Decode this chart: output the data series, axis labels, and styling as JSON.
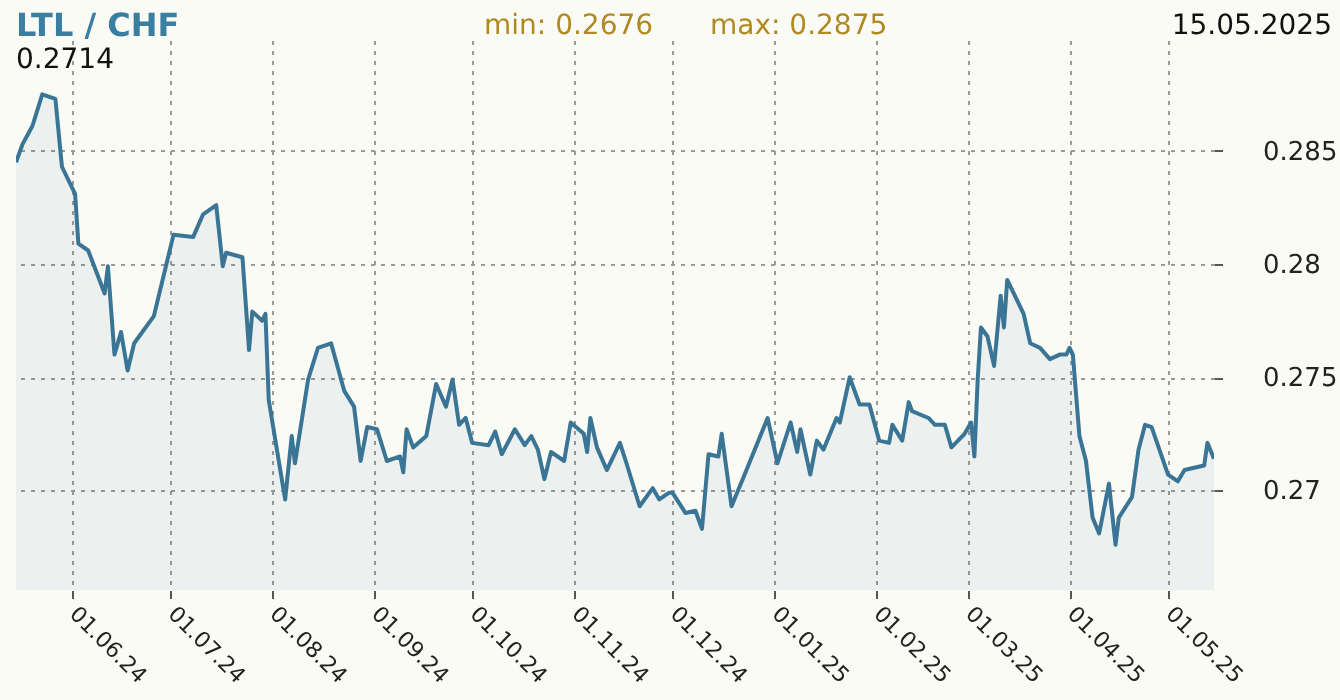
{
  "chart_data": {
    "type": "area",
    "title": "LTL / CHF",
    "annotations": [
      "min: 0.2676",
      "max: 0.2875",
      "15.05.2025",
      "0.2714"
    ],
    "x": [
      "2024-05-15",
      "2024-05-17",
      "2024-05-20",
      "2024-05-23",
      "2024-05-27",
      "2024-05-29",
      "2024-06-02",
      "2024-06-03",
      "2024-06-06",
      "2024-06-11",
      "2024-06-12",
      "2024-06-14",
      "2024-06-16",
      "2024-06-18",
      "2024-06-20",
      "2024-06-26",
      "2024-07-02",
      "2024-07-08",
      "2024-07-11",
      "2024-07-15",
      "2024-07-17",
      "2024-07-18",
      "2024-07-23",
      "2024-07-25",
      "2024-07-26",
      "2024-07-29",
      "2024-07-30",
      "2024-07-31",
      "2024-08-05",
      "2024-08-07",
      "2024-08-08",
      "2024-08-12",
      "2024-08-15",
      "2024-08-19",
      "2024-08-23",
      "2024-08-26",
      "2024-08-28",
      "2024-08-30",
      "2024-09-02",
      "2024-09-05",
      "2024-09-09",
      "2024-09-10",
      "2024-09-11",
      "2024-09-13",
      "2024-09-17",
      "2024-09-20",
      "2024-09-23",
      "2024-09-25",
      "2024-09-27",
      "2024-09-29",
      "2024-10-01",
      "2024-10-06",
      "2024-10-08",
      "2024-10-10",
      "2024-10-14",
      "2024-10-17",
      "2024-10-19",
      "2024-10-21",
      "2024-10-23",
      "2024-10-25",
      "2024-10-29",
      "2024-10-31",
      "2024-11-04",
      "2024-11-05",
      "2024-11-06",
      "2024-11-08",
      "2024-11-11",
      "2024-11-15",
      "2024-11-17",
      "2024-11-21",
      "2024-11-25",
      "2024-11-27",
      "2024-11-30",
      "2024-12-01",
      "2024-12-05",
      "2024-12-08",
      "2024-12-10",
      "2024-12-12",
      "2024-12-15",
      "2024-12-16",
      "2024-12-19",
      "2024-12-23",
      "2024-12-30",
      "2025-01-02",
      "2025-01-06",
      "2025-01-08",
      "2025-01-09",
      "2025-01-12",
      "2025-01-14",
      "2025-01-16",
      "2025-01-20",
      "2025-01-21",
      "2025-01-24",
      "2025-01-27",
      "2025-01-30",
      "2025-02-02",
      "2025-02-05",
      "2025-02-06",
      "2025-02-09",
      "2025-02-11",
      "2025-02-12",
      "2025-02-17",
      "2025-02-19",
      "2025-02-22",
      "2025-02-24",
      "2025-02-28",
      "2025-03-02",
      "2025-03-03",
      "2025-03-04",
      "2025-03-05",
      "2025-03-07",
      "2025-03-09",
      "2025-03-11",
      "2025-03-12",
      "2025-03-13",
      "2025-03-18",
      "2025-03-20",
      "2025-03-23",
      "2025-03-26",
      "2025-03-29",
      "2025-03-31",
      "2025-04-01",
      "2025-04-02",
      "2025-04-04",
      "2025-04-06",
      "2025-04-08",
      "2025-04-10",
      "2025-04-13",
      "2025-04-15",
      "2025-04-16",
      "2025-04-20",
      "2025-04-22",
      "2025-04-24",
      "2025-04-26",
      "2025-05-01",
      "2025-05-04",
      "2025-05-06",
      "2025-05-12",
      "2025-05-13",
      "2025-05-15"
    ],
    "series": [
      {
        "color": "#3a7596",
        "values": [
          0.2845,
          0.2853,
          0.2861,
          0.2875,
          0.2873,
          0.2843,
          0.2831,
          0.2809,
          0.2806,
          0.2787,
          0.2799,
          0.276,
          0.277,
          0.2753,
          0.2765,
          0.2777,
          0.2813,
          0.2812,
          0.2822,
          0.2826,
          0.2799,
          0.2805,
          0.2803,
          0.2762,
          0.2779,
          0.2775,
          0.2778,
          0.274,
          0.2696,
          0.2724,
          0.2712,
          0.2749,
          0.2763,
          0.2765,
          0.2744,
          0.2737,
          0.2713,
          0.2728,
          0.2727,
          0.2713,
          0.2715,
          0.2708,
          0.2727,
          0.2719,
          0.2724,
          0.2747,
          0.2737,
          0.2749,
          0.2729,
          0.2732,
          0.2721,
          0.272,
          0.2726,
          0.2716,
          0.2727,
          0.272,
          0.2724,
          0.2718,
          0.2705,
          0.2717,
          0.2713,
          0.273,
          0.2725,
          0.2717,
          0.2732,
          0.2719,
          0.2709,
          0.2721,
          0.2712,
          0.2693,
          0.2701,
          0.2696,
          0.2699,
          0.2699,
          0.269,
          0.2691,
          0.2683,
          0.2716,
          0.2715,
          0.2725,
          0.2693,
          0.2707,
          0.2732,
          0.2712,
          0.273,
          0.2717,
          0.2727,
          0.2707,
          0.2722,
          0.2718,
          0.2732,
          0.273,
          0.275,
          0.2738,
          0.2738,
          0.2722,
          0.2721,
          0.2729,
          0.2722,
          0.2739,
          0.2735,
          0.2732,
          0.2729,
          0.2729,
          0.2719,
          0.2725,
          0.273,
          0.2715,
          0.2749,
          0.2772,
          0.2768,
          0.2755,
          0.2786,
          0.2772,
          0.2793,
          0.2778,
          0.2765,
          0.2763,
          0.2758,
          0.276,
          0.276,
          0.2763,
          0.276,
          0.2724,
          0.2713,
          0.2688,
          0.2681,
          0.2703,
          0.2676,
          0.2688,
          0.2697,
          0.2718,
          0.2729,
          0.2728,
          0.2707,
          0.2704,
          0.2709,
          0.2711,
          0.2721,
          0.2714
        ]
      }
    ],
    "xlim": [
      "2024-05-15",
      "2025-05-15"
    ],
    "xticks": [
      {
        "value": "2024-06-01",
        "label": "01.06.24"
      },
      {
        "value": "2024-07-01",
        "label": "01.07.24"
      },
      {
        "value": "2024-08-01",
        "label": "01.08.24"
      },
      {
        "value": "2024-09-01",
        "label": "01.09.24"
      },
      {
        "value": "2024-10-01",
        "label": "01.10.24"
      },
      {
        "value": "2024-11-01",
        "label": "01.11.24"
      },
      {
        "value": "2024-12-01",
        "label": "01.12.24"
      },
      {
        "value": "2025-01-01",
        "label": "01.01.25"
      },
      {
        "value": "2025-02-01",
        "label": "01.02.25"
      },
      {
        "value": "2025-03-01",
        "label": "01.03.25"
      },
      {
        "value": "2025-04-01",
        "label": "01.04.25"
      },
      {
        "value": "2025-05-01",
        "label": "01.05.25"
      }
    ],
    "ylim": [
      0.2656,
      0.2899
    ],
    "yticks": [
      0.27,
      0.275,
      0.28,
      0.285
    ],
    "grid": true
  }
}
